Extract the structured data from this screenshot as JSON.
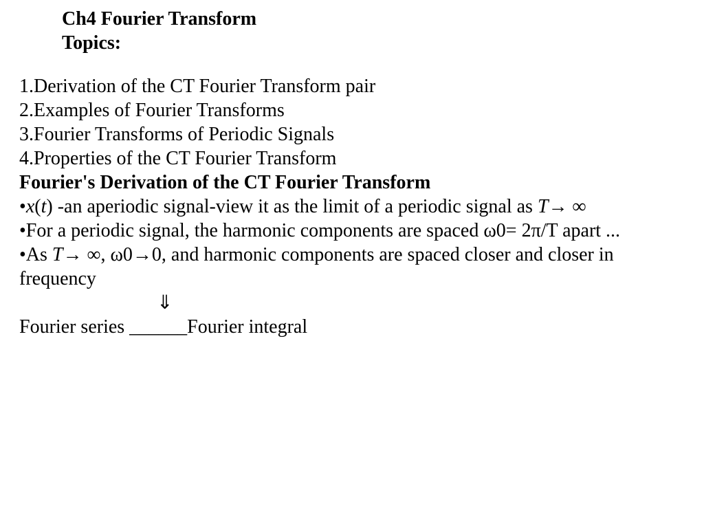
{
  "title": {
    "line1": "Ch4 Fourier Transform",
    "line2": "Topics:"
  },
  "topics": {
    "item1": "1.Derivation of the CT Fourier Transform pair",
    "item2": "2.Examples of Fourier Transforms",
    "item3": "3.Fourier Transforms of Periodic Signals",
    "item4": "4.Properties of the CT Fourier Transform"
  },
  "subheading": "Fourier's Derivation of the CT Fourier Transform",
  "bullets": {
    "b1_prefix": "•",
    "b1_xt_x": "x",
    "b1_xt_open": "(",
    "b1_xt_t": "t",
    "b1_xt_close": ")",
    "b1_text": " -an aperiodic signal-view it as the limit of a periodic signal as ",
    "b1_T": "T",
    "b1_arrow_inf": "→ ∞",
    "b2_text": "•For a periodic signal, the harmonic components are spaced ω0= 2π/T apart ...",
    "b3_prefix": "•As ",
    "b3_T": "T",
    "b3_rest": "→ ∞, ω0→0, and harmonic components are spaced closer and closer in frequency"
  },
  "arrow_symbol": "⇓",
  "conclusion": "Fourier series ______Fourier integral",
  "styles": {
    "body_font_size_pt": 21,
    "background_color": "#ffffff",
    "text_color": "#000000",
    "font_family": "Times New Roman"
  }
}
